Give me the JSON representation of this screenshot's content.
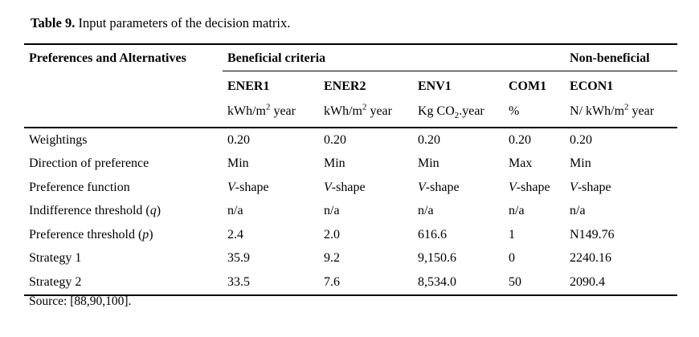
{
  "caption": {
    "label": "Table 9.",
    "text": " Input parameters of the decision matrix."
  },
  "table": {
    "row_header": "Preferences and Alternatives",
    "groups": [
      {
        "label": "Beneficial criteria",
        "span": 4
      },
      {
        "label": "Non-beneficial",
        "span": 1
      }
    ],
    "columns": [
      {
        "code": "ENER1",
        "unit": "kWh/m^{2} year"
      },
      {
        "code": "ENER2",
        "unit": "kWh/m^{2} year"
      },
      {
        "code": "ENV1",
        "unit": "Kg CO_{2}.year"
      },
      {
        "code": "COM1",
        "unit": "%"
      },
      {
        "code": "ECON1",
        "unit": "N/ kWh/m^{2} year"
      }
    ],
    "rows": [
      {
        "label": "Weightings",
        "values": [
          "0.20",
          "0.20",
          "0.20",
          "0.20",
          "0.20"
        ]
      },
      {
        "label": "Direction of preference",
        "values": [
          "Min",
          "Min",
          "Min",
          "Max",
          "Min"
        ]
      },
      {
        "label": "Preference function",
        "values": [
          "*V*-shape",
          "*V*-shape",
          "*V*-shape",
          "*V*-shape",
          "*V*-shape"
        ]
      },
      {
        "label": "Indifference threshold (*q*)",
        "values": [
          "n/a",
          "n/a",
          "n/a",
          "n/a",
          "n/a"
        ]
      },
      {
        "label": "Preference threshold (*p*)",
        "values": [
          "2.4",
          "2.0",
          "616.6",
          "1",
          "N149.76"
        ]
      },
      {
        "label": "Strategy 1",
        "values": [
          "35.9",
          "9.2",
          "9,150.6",
          "0",
          "2240.16"
        ]
      },
      {
        "label": "Strategy 2",
        "values": [
          "33.5",
          "7.6",
          "8,534.0",
          "50",
          "2090.4"
        ]
      }
    ]
  },
  "source": "Source: [88,90,100].",
  "colors": {
    "text": "#000000",
    "background": "#ffffff",
    "rule": "#000000"
  }
}
